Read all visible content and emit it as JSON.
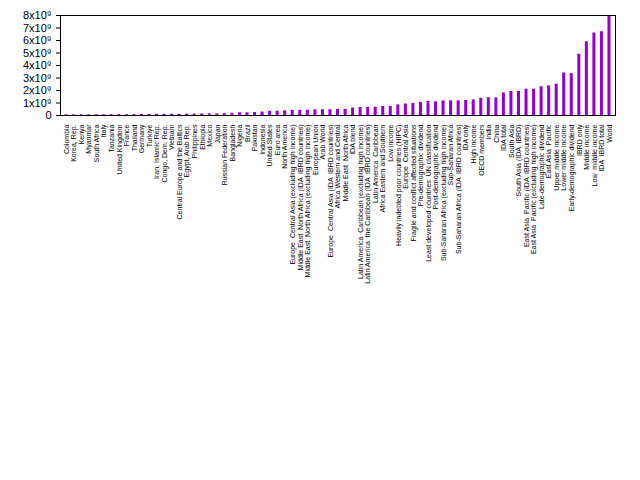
{
  "chart_data": {
    "type": "bar",
    "categories": [
      "Colombia",
      "Korea, Rep.",
      "Kenya",
      "Myanmar",
      "South Africa",
      "Italy",
      "Tanzania",
      "United Kingdom",
      "France",
      "Thailand",
      "Germany",
      "Turkiye",
      "Iran, Islamic Rep.",
      "Congo, Dem. Rep.",
      "Vietnam",
      "Central Europe and the Baltics",
      "Egypt, Arab Rep.",
      "Philippines",
      "Ethiopia",
      "Mexico",
      "Japan",
      "Russian Federation",
      "Bangladesh",
      "Nigeria",
      "Brazil",
      "Pakistan",
      "Indonesia",
      "United States",
      "Euro area",
      "North America",
      "Europe  Central Asia (excluding high income)",
      "Middle East  North Africa (IDA  IBRD countries)",
      "Middle East  North Africa (excluding high income)",
      "European Union",
      "Arab World",
      "Europe  Central Asia (IDA  IBRD countries)",
      "Africa Western and Central",
      "Middle East  North Africa",
      "IDA blend",
      "Latin America  Caribbean (excluding high income)",
      "Latin America  the Caribbean (IDA  IBRD countries)",
      "Latin America  Caribbean",
      "Africa Eastern and Southern",
      "Low income",
      "Heavily indebted poor countries (HIPC)",
      "Europe  Central Asia",
      "Fragile and conflict affected situations",
      "Pre-demographic dividend",
      "Least developed countries: UN classification",
      "Post-demographic dividend",
      "Sub-Saharan Africa (excluding high income)",
      "Sub-Saharan Africa",
      "Sub-Saharan Africa (IDA  IBRD countries)",
      "IDA only",
      "High income",
      "OECD members",
      "India",
      "China",
      "IDA total",
      "South Asia",
      "South Asia (IDA  IBRD)",
      "East Asia  Pacific (IDA  IBRD countries)",
      "East Asia  Pacific (excluding high income)",
      "Late-demographic dividend",
      "East Asia  Pacific",
      "Upper middle income",
      "Lower middle income",
      "Early-demographic dividend",
      "IBRD only",
      "Middle income",
      "Low  middle income",
      "IDA  IBRD total",
      "World"
    ],
    "values": [
      52000000,
      52000000,
      54000000,
      54000000,
      60000000,
      59000000,
      65000000,
      67000000,
      68000000,
      72000000,
      84000000,
      85000000,
      89000000,
      99000000,
      98000000,
      102000000,
      111000000,
      116000000,
      123000000,
      128000000,
      125000000,
      144000000,
      171000000,
      218000000,
      215000000,
      236000000,
      276000000,
      333000000,
      347000000,
      372000000,
      400000000,
      415000000,
      418000000,
      447000000,
      465000000,
      460000000,
      490000000,
      490000000,
      600000000,
      640000000,
      650000000,
      660000000,
      720000000,
      720000000,
      850000000,
      920000000,
      970000000,
      1050000000,
      1120000000,
      1100000000,
      1170000000,
      1170000000,
      1170000000,
      1200000000,
      1250000000,
      1380000000,
      1420000000,
      1410000000,
      1800000000,
      1920000000,
      1920000000,
      2100000000,
      2100000000,
      2300000000,
      2370000000,
      2500000000,
      3400000000,
      3350000000,
      4900000000,
      5900000000,
      6600000000,
      6700000000,
      7950000000
    ],
    "color": "#9400d3",
    "ylim": [
      0,
      8000000000
    ],
    "yticks": [
      0,
      {
        "value": 1000000000,
        "label": "1x10⁹"
      },
      {
        "value": 2000000000,
        "label": "2x10⁹"
      },
      {
        "value": 3000000000,
        "label": "3x10⁹"
      },
      {
        "value": 4000000000,
        "label": "4x10⁹"
      },
      {
        "value": 5000000000,
        "label": "5x10⁹"
      },
      {
        "value": 6000000000,
        "label": "6x10⁹"
      },
      {
        "value": 7000000000,
        "label": "7x10⁹"
      },
      {
        "value": 8000000000,
        "label": "8x10⁹"
      }
    ],
    "grid": false
  }
}
